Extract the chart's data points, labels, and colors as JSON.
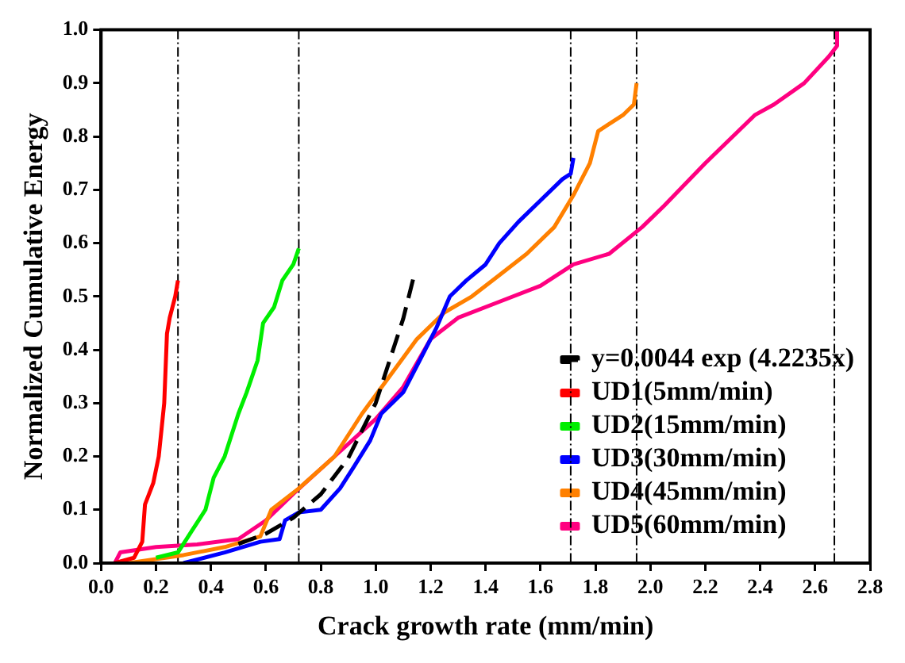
{
  "chart_data": {
    "type": "line",
    "xlabel": "Crack growth rate (mm/min)",
    "ylabel": "Normalized Cumulative Energy",
    "xlim": [
      0,
      2.8
    ],
    "ylim": [
      0,
      1
    ],
    "xticks": [
      {
        "value": 0,
        "label": "0.0"
      },
      {
        "value": 0.2,
        "label": "0.2"
      },
      {
        "value": 0.4,
        "label": "0.4"
      },
      {
        "value": 0.6,
        "label": "0.6"
      },
      {
        "value": 0.8,
        "label": "0.8"
      },
      {
        "value": 1,
        "label": "1.0"
      },
      {
        "value": 1.2,
        "label": "1.2"
      },
      {
        "value": 1.4,
        "label": "1.4"
      },
      {
        "value": 1.6,
        "label": "1.6"
      },
      {
        "value": 1.8,
        "label": "1.8"
      },
      {
        "value": 2,
        "label": "2.0"
      },
      {
        "value": 2.2,
        "label": "2.2"
      },
      {
        "value": 2.4,
        "label": "2.4"
      },
      {
        "value": 2.6,
        "label": "2.6"
      },
      {
        "value": 2.8,
        "label": "2.8"
      }
    ],
    "yticks": [
      {
        "value": 0,
        "label": "0.0"
      },
      {
        "value": 0.1,
        "label": "0.1"
      },
      {
        "value": 0.2,
        "label": "0.2"
      },
      {
        "value": 0.3,
        "label": "0.3"
      },
      {
        "value": 0.4,
        "label": "0.4"
      },
      {
        "value": 0.5,
        "label": "0.5"
      },
      {
        "value": 0.6,
        "label": "0.6"
      },
      {
        "value": 0.7,
        "label": "0.7"
      },
      {
        "value": 0.8,
        "label": "0.8"
      },
      {
        "value": 0.9,
        "label": "0.9"
      },
      {
        "value": 1,
        "label": "1.0"
      }
    ],
    "grid": false,
    "legend": "bottom right",
    "marker": "none",
    "series": [
      {
        "name": "y=0.0044 exp (4.2235x)",
        "color": "#000000",
        "line_style": "dashed",
        "x": [
          0.5,
          0.6,
          0.7,
          0.8,
          0.9,
          1.0,
          1.1,
          1.14
        ],
        "values": [
          0.036,
          0.055,
          0.085,
          0.129,
          0.197,
          0.3,
          0.458,
          0.54
        ]
      },
      {
        "name": "UD1(5mm/min)",
        "color": "#ff0000",
        "x": [
          0.05,
          0.12,
          0.15,
          0.16,
          0.19,
          0.21,
          0.23,
          0.24,
          0.25,
          0.27,
          0.28
        ],
        "values": [
          0,
          0.01,
          0.04,
          0.11,
          0.15,
          0.2,
          0.3,
          0.43,
          0.46,
          0.5,
          0.53
        ]
      },
      {
        "name": "UD2(15mm/min)",
        "color": "#00ee00",
        "x": [
          0.2,
          0.28,
          0.33,
          0.38,
          0.41,
          0.45,
          0.5,
          0.53,
          0.57,
          0.59,
          0.63,
          0.66,
          0.7,
          0.72
        ],
        "values": [
          0.01,
          0.02,
          0.06,
          0.1,
          0.16,
          0.2,
          0.28,
          0.32,
          0.38,
          0.45,
          0.48,
          0.53,
          0.56,
          0.59
        ]
      },
      {
        "name": "UD3(30mm/min)",
        "color": "#0000ff",
        "x": [
          0.3,
          0.45,
          0.58,
          0.65,
          0.67,
          0.72,
          0.8,
          0.87,
          0.92,
          0.98,
          1.02,
          1.1,
          1.16,
          1.22,
          1.27,
          1.33,
          1.4,
          1.45,
          1.52,
          1.6,
          1.68,
          1.71,
          1.72
        ],
        "values": [
          0,
          0.02,
          0.04,
          0.045,
          0.08,
          0.095,
          0.1,
          0.14,
          0.18,
          0.23,
          0.28,
          0.32,
          0.38,
          0.44,
          0.5,
          0.53,
          0.56,
          0.6,
          0.64,
          0.68,
          0.72,
          0.73,
          0.76
        ]
      },
      {
        "name": "UD4(45mm/min)",
        "color": "#ff8000",
        "x": [
          0.1,
          0.3,
          0.45,
          0.58,
          0.62,
          0.72,
          0.85,
          0.95,
          1.05,
          1.15,
          1.25,
          1.35,
          1.45,
          1.55,
          1.65,
          1.72,
          1.78,
          1.81,
          1.9,
          1.94,
          1.95
        ],
        "values": [
          0,
          0.015,
          0.03,
          0.05,
          0.1,
          0.14,
          0.2,
          0.28,
          0.35,
          0.42,
          0.47,
          0.5,
          0.54,
          0.58,
          0.63,
          0.69,
          0.75,
          0.81,
          0.84,
          0.86,
          0.9
        ]
      },
      {
        "name": "UD5(60mm/min)",
        "color": "#ff0080",
        "x": [
          0.05,
          0.07,
          0.2,
          0.35,
          0.5,
          0.6,
          0.7,
          0.85,
          1.0,
          1.1,
          1.2,
          1.3,
          1.45,
          1.6,
          1.72,
          1.85,
          1.97,
          2.05,
          2.2,
          2.38,
          2.45,
          2.56,
          2.65,
          2.68,
          2.68
        ],
        "values": [
          0,
          0.02,
          0.03,
          0.035,
          0.045,
          0.08,
          0.13,
          0.2,
          0.27,
          0.33,
          0.42,
          0.46,
          0.49,
          0.52,
          0.56,
          0.58,
          0.63,
          0.67,
          0.75,
          0.84,
          0.86,
          0.9,
          0.95,
          0.97,
          1.0
        ]
      }
    ],
    "ref_lines": [
      {
        "axis": "x",
        "value": 0.28,
        "color": "#000000",
        "line_style": "dashed"
      },
      {
        "axis": "x",
        "value": 0.72,
        "color": "#000000",
        "line_style": "dashed"
      },
      {
        "axis": "x",
        "value": 1.71,
        "color": "#000000",
        "line_style": "dashed"
      },
      {
        "axis": "x",
        "value": 1.95,
        "color": "#000000",
        "line_style": "dashed"
      },
      {
        "axis": "x",
        "value": 2.67,
        "color": "#000000",
        "line_style": "dashed"
      }
    ]
  }
}
